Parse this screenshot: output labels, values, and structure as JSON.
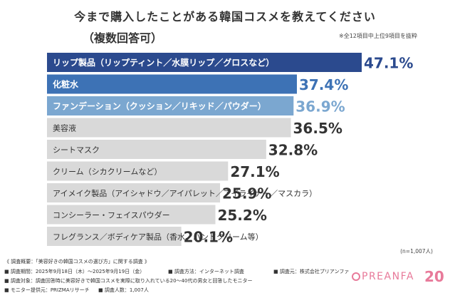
{
  "header": {
    "title": "今まで購入したことがある韓国コスメを教えてください",
    "subtitle": "（複数回答可）",
    "note": "※全12項目中上位9項目を抜粋"
  },
  "chart_data": {
    "type": "bar",
    "orientation": "horizontal",
    "title": "今まで購入したことがある韓国コスメを教えてください（複数回答可）",
    "unit": "%",
    "categories": [
      "リップ製品（リップティント／水膜リップ／グロスなど）",
      "化粧水",
      "ファンデーション（クッション／リキッド／パウダー）",
      "美容液",
      "シートマスク",
      "クリーム（シカクリームなど）",
      "アイメイク製品（アイシャドウ／アイパレット／アイライナー／マスカラ）",
      "コンシーラー・フェイスパウダー",
      "フレグランス／ボディケア製品（香水、ハンドクリーム等）"
    ],
    "values": [
      47.1,
      37.4,
      36.9,
      36.5,
      32.8,
      27.1,
      25.9,
      25.2,
      20.1
    ],
    "value_labels": [
      "47.1%",
      "37.4%",
      "36.9%",
      "36.5%",
      "32.8%",
      "27.1%",
      "25.9%",
      "25.2%",
      "20.1%"
    ],
    "highlight_colors": [
      "#2b4a8e",
      "#3d72b5",
      "#7ba7d0"
    ],
    "default_color": "#d9d9d9",
    "xlim": [
      0,
      47.1
    ]
  },
  "sample_size": "(n=1,007人)",
  "footer": {
    "overview": "《 調査概要：「美容好きの韓国コスメの選び方」に関する調査 》",
    "period": "■ 調査期間：2025年9月18日（木）〜2025年9月19日（金）",
    "method": "■ 調査方法：インターネット調査",
    "organizer": "■ 調査元：株式会社プリアンファ",
    "target": "■ 調査対象：調査回答時に美容好きで韓国コスメを実際に取り入れている20〜40代の男女と回答したモニター",
    "monitor": "■ モニター提供元：PRIZMAリサーチ",
    "count": "■ 調査人数：1,007人"
  },
  "logo": {
    "text": "PREANFA",
    "badge": "20"
  }
}
